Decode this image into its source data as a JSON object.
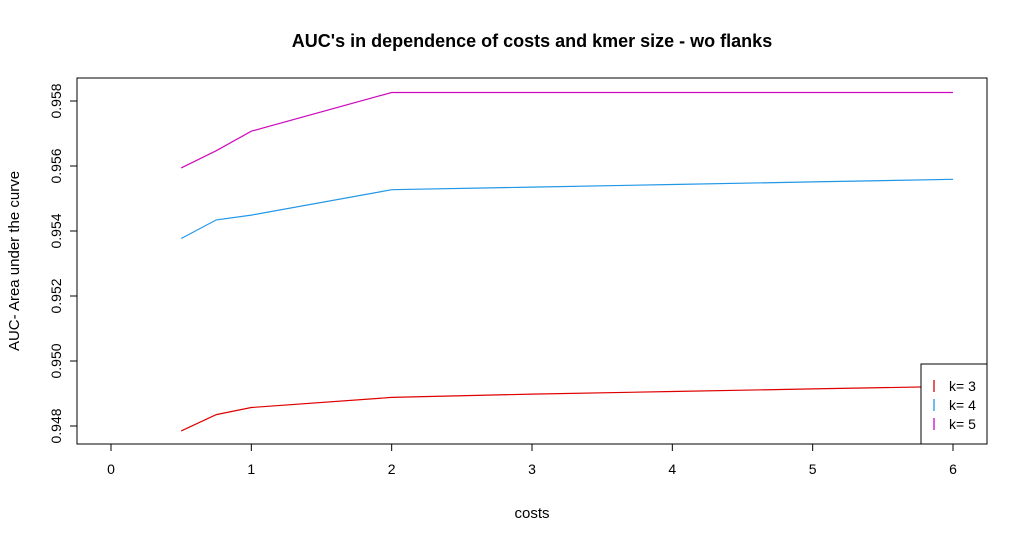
{
  "chart_data": {
    "type": "line",
    "title": "AUC's in dependence of costs and kmer size - wo flanks",
    "xlabel": "costs",
    "ylabel": "AUC- Area under the curve",
    "xlim": [
      0,
      6
    ],
    "ylim": [
      0.948,
      0.958
    ],
    "xticks": [
      0,
      1,
      2,
      3,
      4,
      5,
      6
    ],
    "xtick_labels": [
      "0",
      "1",
      "2",
      "3",
      "4",
      "5",
      "6"
    ],
    "yticks": [
      0.948,
      0.95,
      0.952,
      0.954,
      0.956,
      0.958
    ],
    "ytick_labels": [
      "0.948",
      "0.950",
      "0.952",
      "0.954",
      "0.956",
      "0.958"
    ],
    "grid": false,
    "legend_position": "bottom-right",
    "series": [
      {
        "name": "k= 3",
        "color": "#DF0000",
        "x": [
          0.5,
          0.75,
          1,
          2,
          3,
          4,
          5,
          6
        ],
        "values": [
          0.94785,
          0.94835,
          0.94857,
          0.94888,
          0.94898,
          0.94906,
          0.94914,
          0.94922
        ]
      },
      {
        "name": "k= 4",
        "color": "#2297E6",
        "x": [
          0.5,
          0.75,
          1,
          2,
          3,
          4,
          5,
          6
        ],
        "values": [
          0.95377,
          0.95434,
          0.95449,
          0.95527,
          0.95535,
          0.95543,
          0.95551,
          0.95559
        ]
      },
      {
        "name": "k= 5",
        "color": "#CD0BBC",
        "x": [
          0.5,
          0.75,
          1,
          2,
          3,
          4,
          5,
          6
        ],
        "values": [
          0.95594,
          0.95647,
          0.95707,
          0.95826,
          0.95826,
          0.95826,
          0.95826,
          0.95826
        ]
      }
    ]
  }
}
